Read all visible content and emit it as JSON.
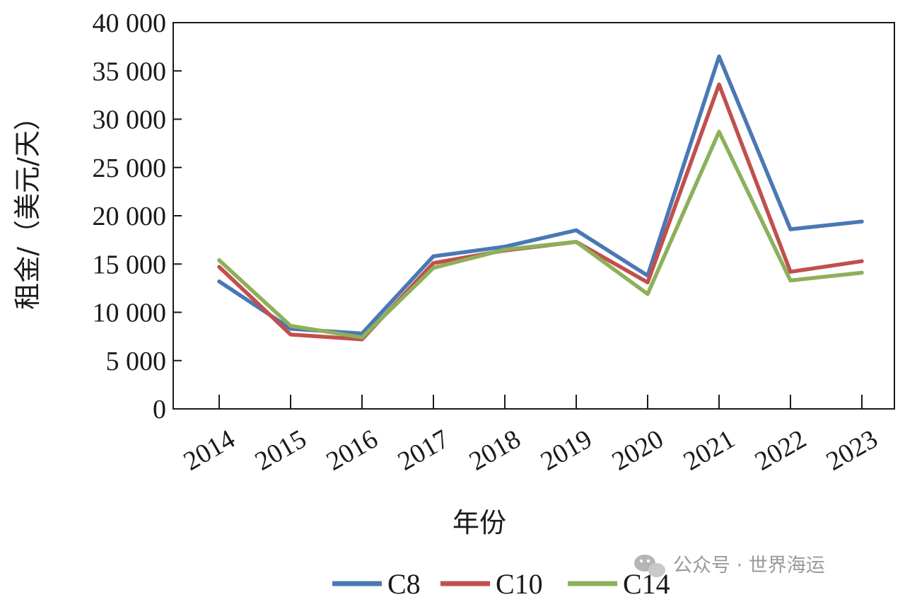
{
  "chart_data": {
    "type": "line",
    "x": [
      "2014",
      "2015",
      "2016",
      "2017",
      "2018",
      "2019",
      "2020",
      "2021",
      "2022",
      "2023"
    ],
    "series": [
      {
        "name": "C8",
        "color": "#4a78b5",
        "values": [
          13200,
          8300,
          7800,
          15800,
          16800,
          18500,
          13800,
          36500,
          18600,
          19400
        ]
      },
      {
        "name": "C10",
        "color": "#c0504d",
        "values": [
          14700,
          7700,
          7200,
          15100,
          16400,
          17300,
          13100,
          33600,
          14200,
          15300
        ]
      },
      {
        "name": "C14",
        "color": "#8db05a",
        "values": [
          15400,
          8600,
          7400,
          14600,
          16500,
          17300,
          11900,
          28700,
          13300,
          14100
        ]
      }
    ],
    "yticks": [
      0,
      5000,
      10000,
      15000,
      20000,
      25000,
      30000,
      35000,
      40000
    ],
    "ytick_labels": [
      "0",
      "5 000",
      "10 000",
      "15 000",
      "20 000",
      "25 000",
      "30 000",
      "35 000",
      "40 000"
    ],
    "ylim": [
      0,
      40000
    ],
    "xlabel": "年份",
    "ylabel": "租金/（美元/天）",
    "legend_position": "bottom-center",
    "grid": false
  },
  "watermark": {
    "text": "公众号 · 世界海运",
    "icon": "wechat-icon"
  }
}
